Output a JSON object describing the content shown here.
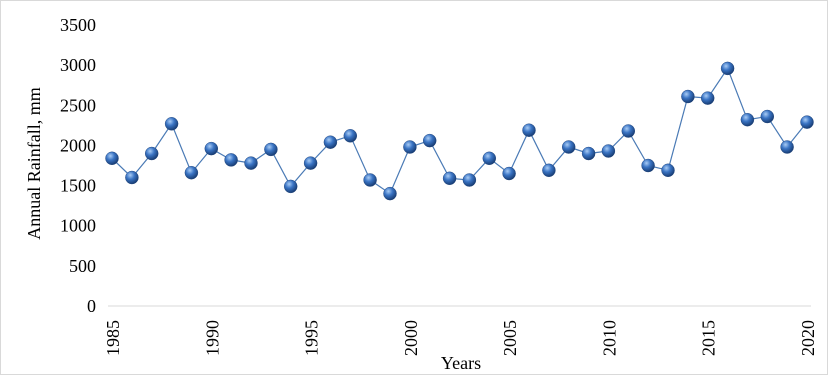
{
  "chart_data": {
    "type": "line",
    "title": "",
    "xlabel": "Years",
    "ylabel": "Annual Rainfall, mm",
    "xlim": [
      1985,
      2020
    ],
    "ylim": [
      0,
      3500
    ],
    "x_ticks": [
      "1985",
      "1990",
      "1995",
      "2000",
      "2005",
      "2010",
      "2015",
      "2020"
    ],
    "y_ticks": [
      "0",
      "500",
      "1000",
      "1500",
      "2000",
      "2500",
      "3000",
      "3500"
    ],
    "grid": false,
    "legend": "none",
    "markers": true,
    "colors": {
      "line": "#4a7ab5",
      "marker": "#2e5fa8",
      "marker_highlight": "#9fc3ef",
      "marker_shade": "#1c3f75"
    },
    "series": [
      {
        "x": [
          1985,
          1986,
          1987,
          1988,
          1989,
          1990,
          1991,
          1992,
          1993,
          1994,
          1995,
          1996,
          1997,
          1998,
          1999,
          2000,
          2001,
          2002,
          2003,
          2004,
          2005,
          2006,
          2007,
          2008,
          2009,
          2010,
          2011,
          2012,
          2013,
          2014,
          2015,
          2016,
          2017,
          2018,
          2019,
          2020
        ],
        "values": [
          1840,
          1600,
          1900,
          2270,
          1660,
          1960,
          1820,
          1780,
          1950,
          1490,
          1780,
          2040,
          2120,
          1570,
          1400,
          1980,
          2060,
          1590,
          1570,
          1840,
          1650,
          2190,
          1690,
          1980,
          1900,
          1930,
          2180,
          1750,
          1690,
          2610,
          2590,
          2960,
          2320,
          2360,
          1980,
          2290
        ]
      }
    ]
  }
}
